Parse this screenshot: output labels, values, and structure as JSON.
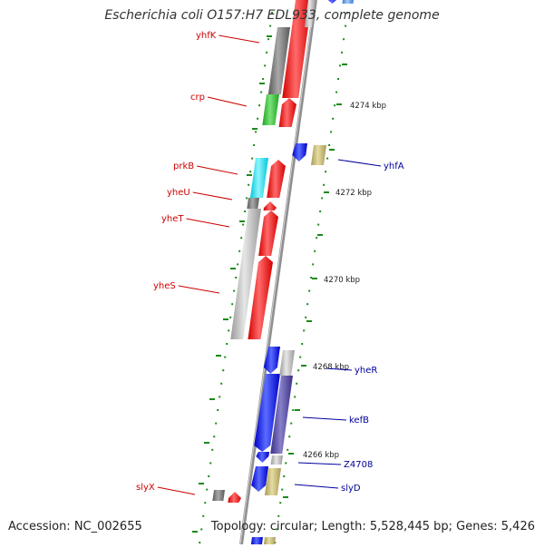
{
  "title": "Escherichia coli O157:H7 EDL933, complete genome",
  "accession": "Accession: NC_002655",
  "topology": "Topology: circular; Length: 5,528,445 bp; Genes: 5,426",
  "colors": {
    "forward_label": "#cc0000",
    "reverse_label": "#00009c",
    "backbone": "#999999",
    "tick": "#1a8a1a"
  },
  "scale_labels": [
    "4274 kbp",
    "4272 kbp",
    "4270 kbp",
    "4268 kbp",
    "4266 kbp"
  ],
  "gene_labels_forward": [
    "yhfK",
    "crp",
    "prkB",
    "yheU",
    "yheT",
    "yheS",
    "slyX"
  ],
  "gene_labels_reverse": [
    "yhfA",
    "yheR",
    "kefB",
    "Z4708",
    "slyD"
  ]
}
